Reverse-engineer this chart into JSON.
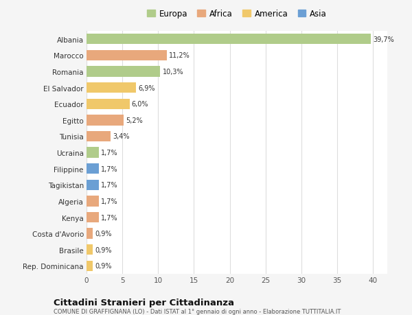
{
  "countries": [
    "Rep. Dominicana",
    "Brasile",
    "Costa d'Avorio",
    "Kenya",
    "Algeria",
    "Tagikistan",
    "Filippine",
    "Ucraina",
    "Tunisia",
    "Egitto",
    "Ecuador",
    "El Salvador",
    "Romania",
    "Marocco",
    "Albania"
  ],
  "values": [
    0.9,
    0.9,
    0.9,
    1.7,
    1.7,
    1.7,
    1.7,
    1.7,
    3.4,
    5.2,
    6.0,
    6.9,
    10.3,
    11.2,
    39.7
  ],
  "labels": [
    "0,9%",
    "0,9%",
    "0,9%",
    "1,7%",
    "1,7%",
    "1,7%",
    "1,7%",
    "1,7%",
    "3,4%",
    "5,2%",
    "6,0%",
    "6,9%",
    "10,3%",
    "11,2%",
    "39,7%"
  ],
  "colors": [
    "#f0c86a",
    "#f0c86a",
    "#e8a87c",
    "#e8a87c",
    "#e8a87c",
    "#6b9fd4",
    "#6b9fd4",
    "#b0cc8a",
    "#e8a87c",
    "#e8a87c",
    "#f0c86a",
    "#f0c86a",
    "#b0cc8a",
    "#e8a87c",
    "#b0cc8a"
  ],
  "legend_labels": [
    "Europa",
    "Africa",
    "America",
    "Asia"
  ],
  "legend_colors": [
    "#b0cc8a",
    "#e8a87c",
    "#f0c86a",
    "#6b9fd4"
  ],
  "title": "Cittadini Stranieri per Cittadinanza",
  "subtitle": "COMUNE DI GRAFFIGNANA (LO) - Dati ISTAT al 1° gennaio di ogni anno - Elaborazione TUTTITALIA.IT",
  "xlim": [
    0,
    42
  ],
  "xticks": [
    0,
    5,
    10,
    15,
    20,
    25,
    30,
    35,
    40
  ],
  "bg_color": "#f5f5f5",
  "plot_bg_color": "#ffffff",
  "grid_color": "#dddddd"
}
